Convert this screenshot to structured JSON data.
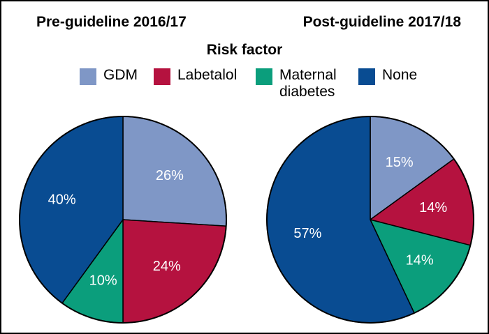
{
  "legend": {
    "title": "Risk factor",
    "items": [
      {
        "label": "GDM",
        "color": "#7f97c6"
      },
      {
        "label": "Labetalol",
        "color": "#b5123f"
      },
      {
        "label": "Maternal\ndiabetes",
        "color": "#0b9e7c"
      },
      {
        "label": "None",
        "color": "#094c92"
      }
    ]
  },
  "chart_data": [
    {
      "type": "pie",
      "title": "Pre-guideline 2016/17",
      "categories": [
        "GDM",
        "Labetalol",
        "Maternal diabetes",
        "None"
      ],
      "values": [
        26,
        24,
        10,
        40
      ],
      "labels": [
        "26%",
        "24%",
        "10%",
        "40%"
      ]
    },
    {
      "type": "pie",
      "title": "Post-guideline 2017/18",
      "categories": [
        "GDM",
        "Labetalol",
        "Maternal diabetes",
        "None"
      ],
      "values": [
        15,
        14,
        14,
        57
      ],
      "labels": [
        "15%",
        "14%",
        "14%",
        "57%"
      ]
    }
  ]
}
